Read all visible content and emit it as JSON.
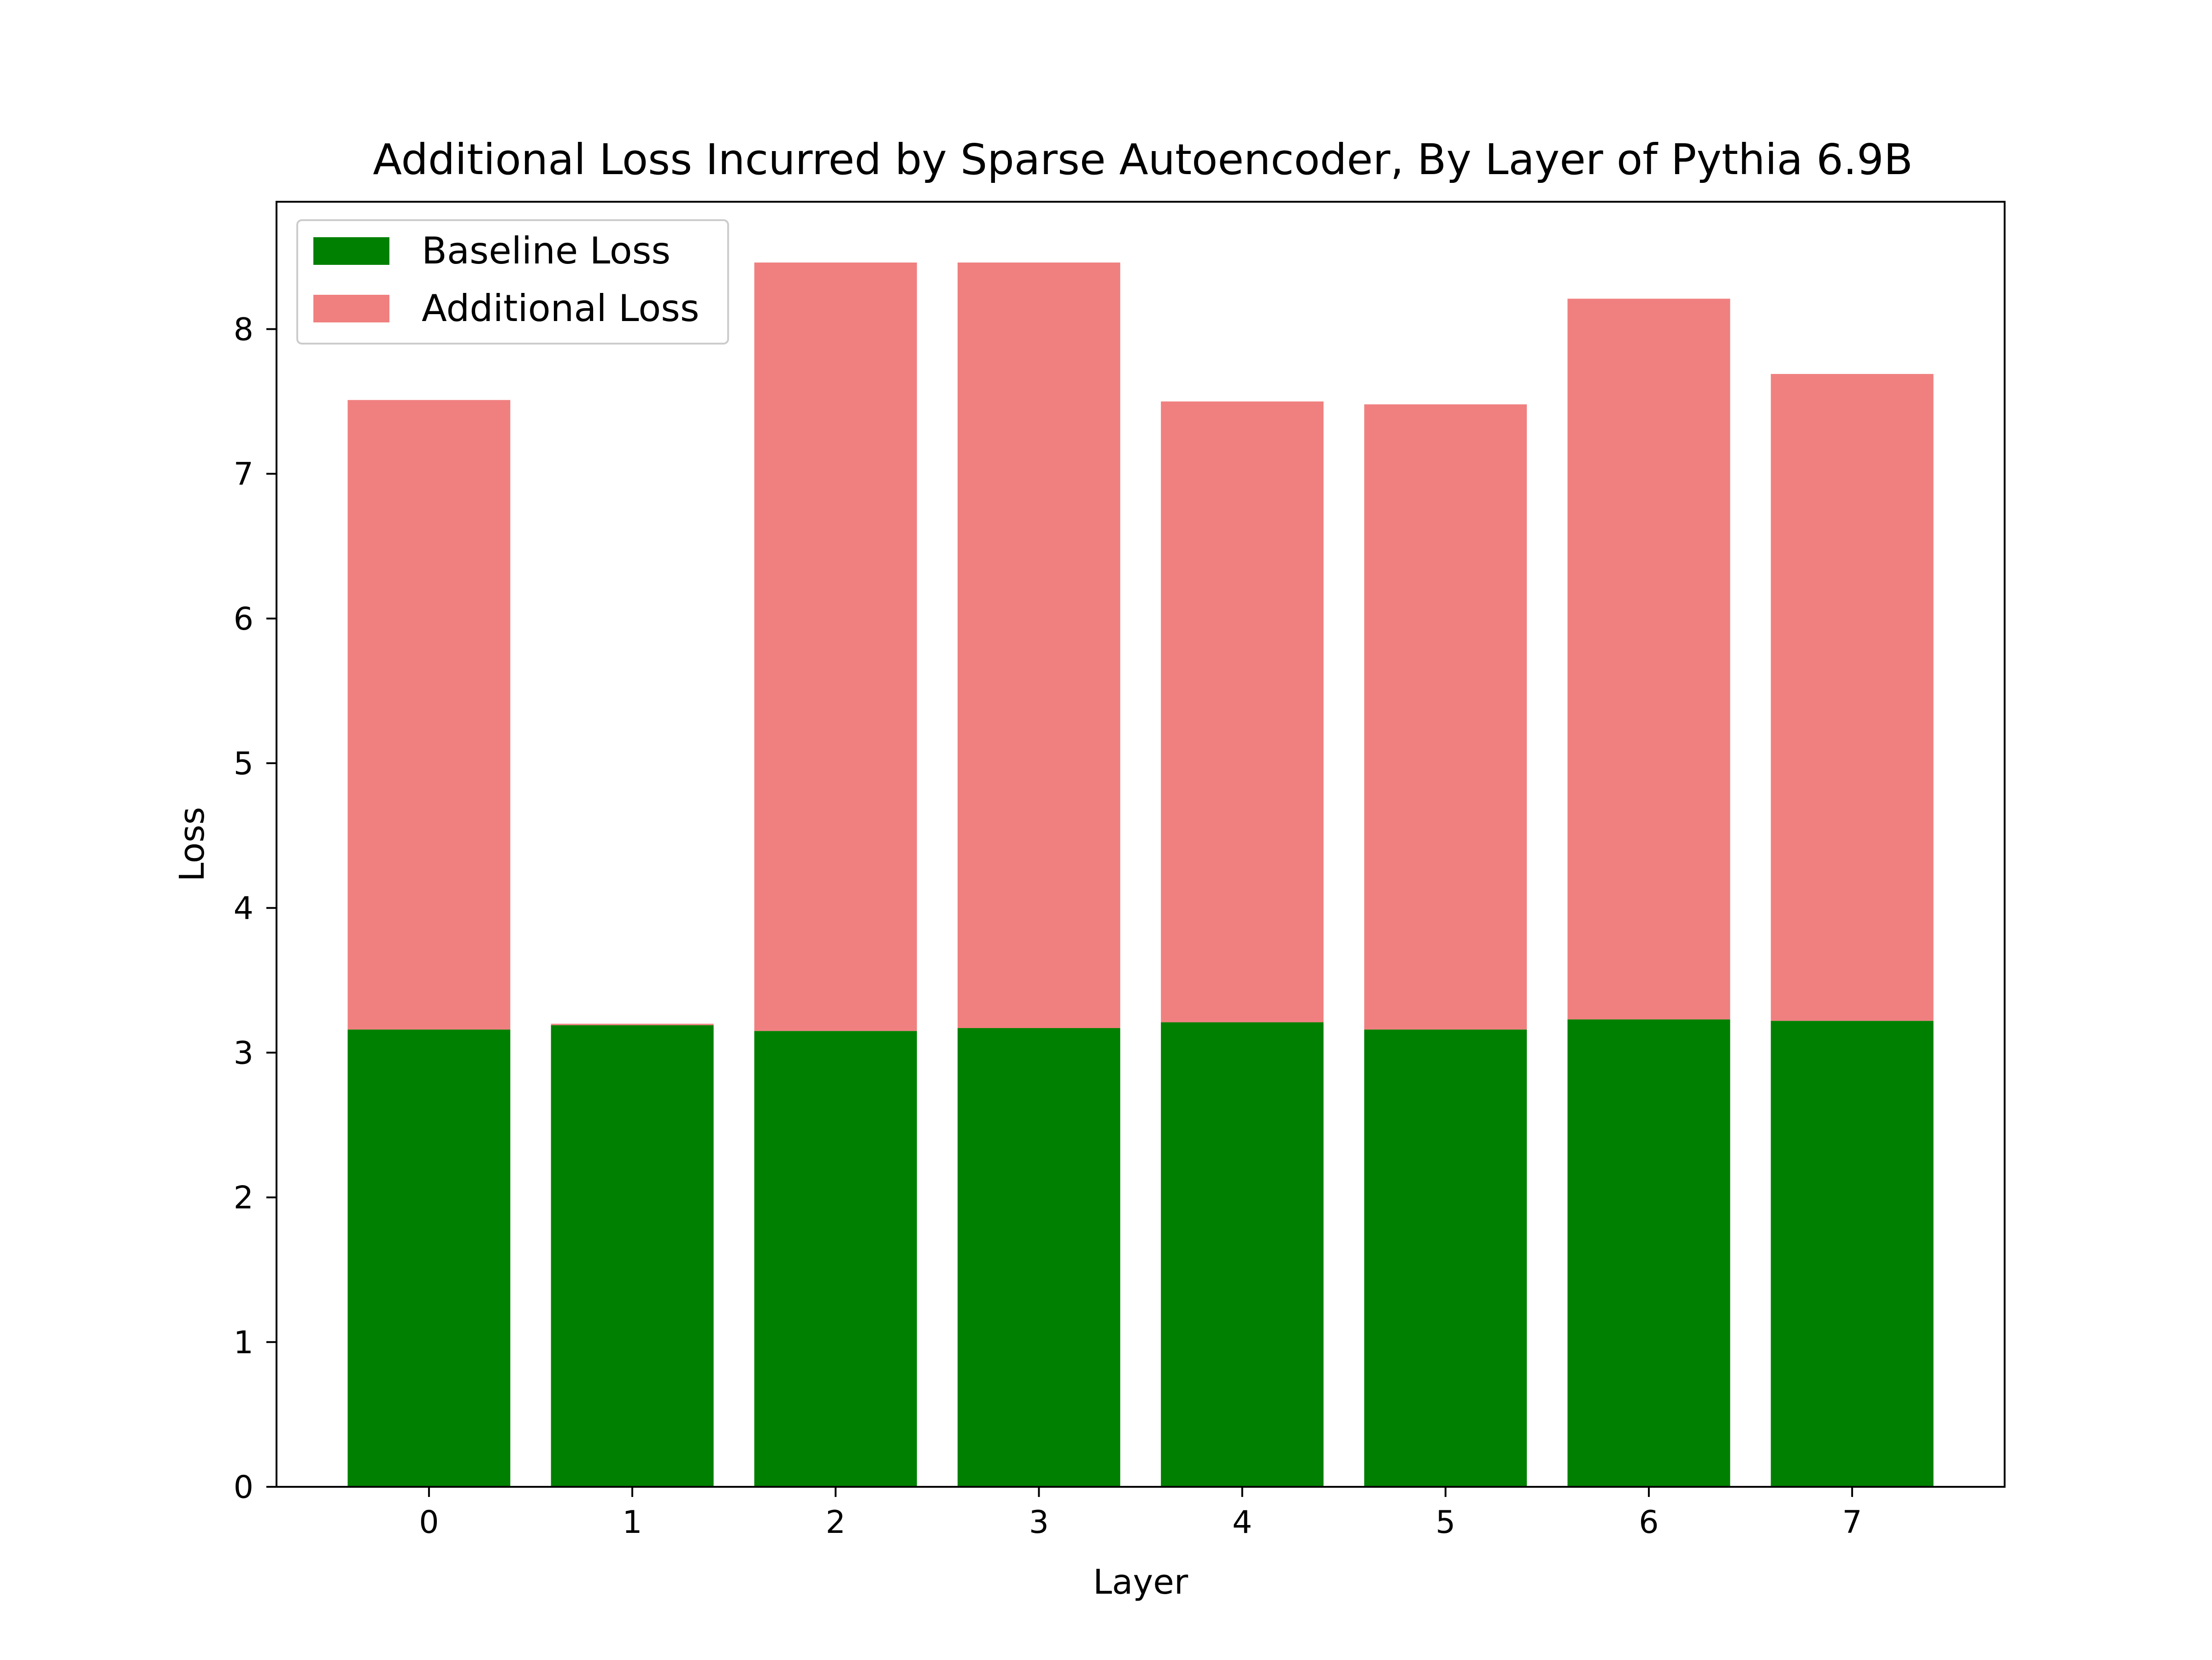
{
  "chart_data": {
    "type": "bar",
    "stacked": true,
    "title": "Additional Loss Incurred by Sparse Autoencoder, By Layer of Pythia 6.9B",
    "xlabel": "Layer",
    "ylabel": "Loss",
    "categories": [
      "0",
      "1",
      "2",
      "3",
      "4",
      "5",
      "6",
      "7"
    ],
    "xlim": [
      -0.75,
      7.75
    ],
    "ylim": [
      0,
      8.88
    ],
    "yticks": [
      0,
      1,
      2,
      3,
      4,
      5,
      6,
      7,
      8
    ],
    "grid": false,
    "legend_position": "upper-left",
    "series": [
      {
        "name": "Baseline Loss",
        "color": "#008000",
        "values": [
          3.16,
          3.19,
          3.15,
          3.17,
          3.21,
          3.16,
          3.23,
          3.22
        ]
      },
      {
        "name": "Additional Loss",
        "color": "#F08080",
        "values": [
          4.35,
          0.01,
          5.31,
          5.29,
          4.29,
          4.32,
          4.98,
          4.47
        ]
      }
    ]
  }
}
